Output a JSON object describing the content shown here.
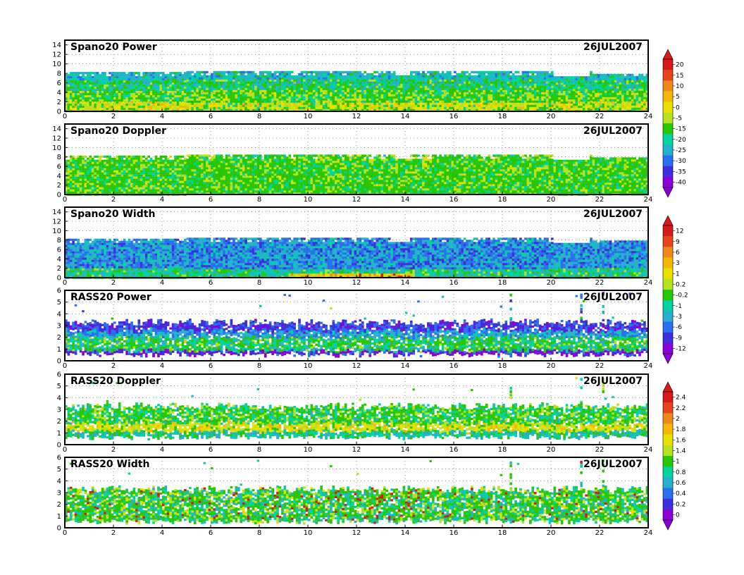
{
  "chart_data": [
    {
      "type": "heatmap",
      "title": "Spano20 Power",
      "date": "26JUL2007",
      "x_ticks": [
        "0",
        "2",
        "4",
        "6",
        "8",
        "10",
        "12",
        "14",
        "16",
        "18",
        "20",
        "22",
        "24"
      ],
      "y_ticks": [
        "0",
        "2",
        "4",
        "6",
        "8",
        "10",
        "12",
        "14"
      ],
      "xlim": [
        0,
        24
      ],
      "ylim": [
        0,
        15
      ],
      "data_top": 8.5,
      "grid": true,
      "colorbar": {
        "labels": [
          "20",
          "15",
          "10",
          "5",
          "0",
          "-5",
          "-15",
          "-20",
          "-25",
          "-30",
          "-35",
          "-40"
        ],
        "colors": [
          "#d7191c",
          "#e8431a",
          "#ef8a1a",
          "#f5b800",
          "#e9e000",
          "#b6e21e",
          "#28c800",
          "#00d4a0",
          "#26b0cf",
          "#2a6ff0",
          "#3d2ee0",
          "#8a00d8"
        ]
      }
    },
    {
      "type": "heatmap",
      "title": "Spano20 Doppler",
      "date": "26JUL2007",
      "x_ticks": [
        "0",
        "2",
        "4",
        "6",
        "8",
        "10",
        "12",
        "14",
        "16",
        "18",
        "20",
        "22",
        "24"
      ],
      "y_ticks": [
        "0",
        "2",
        "4",
        "6",
        "8",
        "10",
        "12",
        "14"
      ],
      "xlim": [
        0,
        24
      ],
      "ylim": [
        0,
        15
      ],
      "data_top": 8.5,
      "grid": true
    },
    {
      "type": "heatmap",
      "title": "Spano20 Width",
      "date": "26JUL2007",
      "x_ticks": [
        "0",
        "2",
        "4",
        "6",
        "8",
        "10",
        "12",
        "14",
        "16",
        "18",
        "20",
        "22",
        "24"
      ],
      "y_ticks": [
        "0",
        "2",
        "4",
        "6",
        "8",
        "10",
        "12",
        "14"
      ],
      "xlim": [
        0,
        24
      ],
      "ylim": [
        0,
        15
      ],
      "data_top": 8.5,
      "grid": true,
      "colorbar": {
        "labels": [
          "12",
          "9",
          "6",
          "3",
          "1",
          "0.2",
          "-0.2",
          "-1",
          "-3",
          "-6",
          "-9",
          "-12"
        ],
        "colors": [
          "#d7191c",
          "#e8431a",
          "#ef8a1a",
          "#f5b800",
          "#e9e000",
          "#b6e21e",
          "#28c800",
          "#00d4a0",
          "#26b0cf",
          "#2a6ff0",
          "#3d2ee0",
          "#8a00d8"
        ]
      }
    },
    {
      "type": "heatmap",
      "title": "RASS20 Power",
      "date": "26JUL2007",
      "x_ticks": [
        "0",
        "2",
        "4",
        "6",
        "8",
        "10",
        "12",
        "14",
        "16",
        "18",
        "20",
        "22",
        "24"
      ],
      "y_ticks": [
        "0",
        "1",
        "2",
        "3",
        "4",
        "5",
        "6"
      ],
      "xlim": [
        0,
        24
      ],
      "ylim": [
        0,
        6
      ],
      "band": [
        0.6,
        3.3
      ],
      "grid": true
    },
    {
      "type": "heatmap",
      "title": "RASS20 Doppler",
      "date": "26JUL2007",
      "x_ticks": [
        "0",
        "2",
        "4",
        "6",
        "8",
        "10",
        "12",
        "14",
        "16",
        "18",
        "20",
        "22",
        "24"
      ],
      "y_ticks": [
        "0",
        "1",
        "2",
        "3",
        "4",
        "5",
        "6"
      ],
      "xlim": [
        0,
        24
      ],
      "ylim": [
        0,
        6
      ],
      "band": [
        0.7,
        3.3
      ],
      "grid": true,
      "colorbar": {
        "labels": [
          "2.4",
          "2.2",
          "2",
          "1.8",
          "1.6",
          "1.4",
          "1",
          "0.8",
          "0.6",
          "0.4",
          "0.2",
          "0"
        ],
        "colors": [
          "#d7191c",
          "#e8431a",
          "#ef8a1a",
          "#f5b800",
          "#e9e000",
          "#b6e21e",
          "#28c800",
          "#00d4a0",
          "#26b0cf",
          "#2a6ff0",
          "#3d2ee0",
          "#8a00d8"
        ]
      }
    },
    {
      "type": "heatmap",
      "title": "RASS20 Width",
      "date": "26JUL2007",
      "x_ticks": [
        "0",
        "2",
        "4",
        "6",
        "8",
        "10",
        "12",
        "14",
        "16",
        "18",
        "20",
        "22",
        "24"
      ],
      "y_ticks": [
        "0",
        "1",
        "2",
        "3",
        "4",
        "5",
        "6"
      ],
      "xlim": [
        0,
        24
      ],
      "ylim": [
        0,
        6
      ],
      "band": [
        0.6,
        3.3
      ],
      "grid": true
    }
  ]
}
